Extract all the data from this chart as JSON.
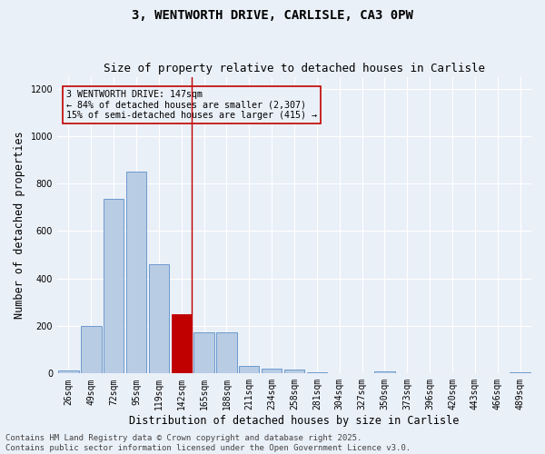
{
  "title_line1": "3, WENTWORTH DRIVE, CARLISLE, CA3 0PW",
  "title_line2": "Size of property relative to detached houses in Carlisle",
  "xlabel": "Distribution of detached houses by size in Carlisle",
  "ylabel": "Number of detached properties",
  "footer_line1": "Contains HM Land Registry data © Crown copyright and database right 2025.",
  "footer_line2": "Contains public sector information licensed under the Open Government Licence v3.0.",
  "categories": [
    "26sqm",
    "49sqm",
    "72sqm",
    "95sqm",
    "119sqm",
    "142sqm",
    "165sqm",
    "188sqm",
    "211sqm",
    "234sqm",
    "258sqm",
    "281sqm",
    "304sqm",
    "327sqm",
    "350sqm",
    "373sqm",
    "396sqm",
    "420sqm",
    "443sqm",
    "466sqm",
    "489sqm"
  ],
  "values": [
    12,
    200,
    735,
    850,
    460,
    250,
    175,
    175,
    30,
    22,
    15,
    5,
    0,
    0,
    8,
    0,
    0,
    0,
    0,
    0,
    7
  ],
  "bar_color": "#b8cce4",
  "bar_edge_color": "#5b8fc9",
  "highlight_index": 5,
  "highlight_color": "#c00000",
  "annotation_text": "3 WENTWORTH DRIVE: 147sqm\n← 84% of detached houses are smaller (2,307)\n15% of semi-detached houses are larger (415) →",
  "ylim": [
    0,
    1250
  ],
  "yticks": [
    0,
    200,
    400,
    600,
    800,
    1000,
    1200
  ],
  "background_color": "#eaf0f8",
  "grid_color": "#ffffff",
  "title_fontsize": 10,
  "subtitle_fontsize": 9,
  "axis_label_fontsize": 8.5,
  "tick_fontsize": 7,
  "footer_fontsize": 6.5
}
